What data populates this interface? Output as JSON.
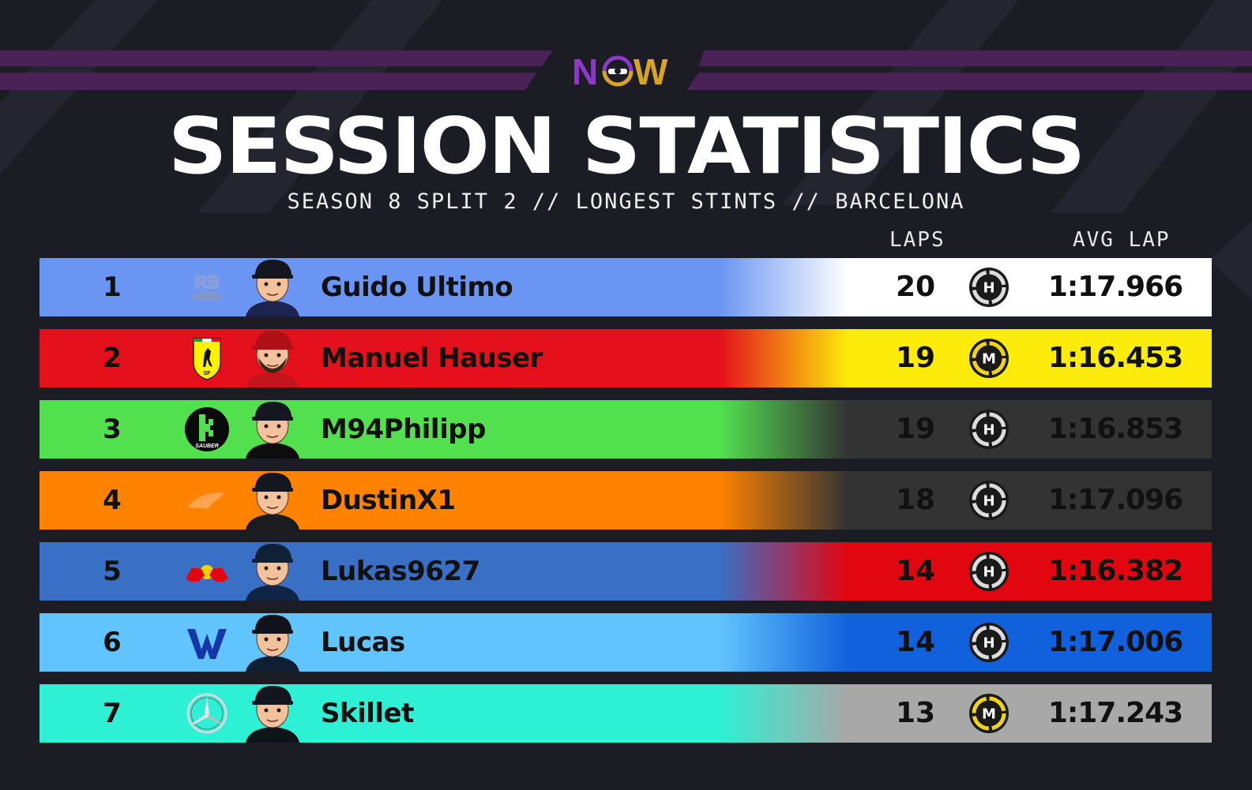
{
  "brand": {
    "logo_left": "N",
    "logo_right": "W",
    "purple": "#8d38c9",
    "gold": "#d7a425"
  },
  "header": {
    "title": "SESSION STATISTICS",
    "subtitle": "SEASON 8 SPLIT 2 // LONGEST STINTS // BARCELONA"
  },
  "columns": {
    "laps": "LAPS",
    "avg_lap": "AVG LAP"
  },
  "rows": [
    {
      "rank": "1",
      "driver": "Guido Ultimo",
      "team_icon": "racing-bulls-logo-icon",
      "laps": "20",
      "tyre": "H",
      "tyre_name": "hard",
      "avg_lap": "1:17.966",
      "team_color": "#6a95f2",
      "band_color": "#ffffff"
    },
    {
      "rank": "2",
      "driver": "Manuel Hauser",
      "team_icon": "ferrari-logo-icon",
      "laps": "19",
      "tyre": "M",
      "tyre_name": "medium",
      "avg_lap": "1:16.453",
      "team_color": "#e4101c",
      "band_color": "#fdeb0b"
    },
    {
      "rank": "3",
      "driver": "M94Philipp",
      "team_icon": "kick-sauber-logo-icon",
      "laps": "19",
      "tyre": "H",
      "tyre_name": "hard",
      "avg_lap": "1:16.853",
      "team_color": "#52e04f",
      "band_color": "#333333"
    },
    {
      "rank": "4",
      "driver": "DustinX1",
      "team_icon": "mclaren-logo-icon",
      "laps": "18",
      "tyre": "H",
      "tyre_name": "hard",
      "avg_lap": "1:17.096",
      "team_color": "#ff8200",
      "band_color": "#333333"
    },
    {
      "rank": "5",
      "driver": "Lukas9627",
      "team_icon": "red-bull-logo-icon",
      "laps": "14",
      "tyre": "H",
      "tyre_name": "hard",
      "avg_lap": "1:16.382",
      "team_color": "#3a6fc6",
      "band_color": "#e20610"
    },
    {
      "rank": "6",
      "driver": "Lucas",
      "team_icon": "williams-logo-icon",
      "laps": "14",
      "tyre": "H",
      "tyre_name": "hard",
      "avg_lap": "1:17.006",
      "team_color": "#62c4fc",
      "band_color": "#1261dc"
    },
    {
      "rank": "7",
      "driver": "Skillet",
      "team_icon": "mercedes-logo-icon",
      "laps": "13",
      "tyre": "M",
      "tyre_name": "medium",
      "avg_lap": "1:17.243",
      "team_color": "#2ef0d4",
      "band_color": "#a8a8a8"
    }
  ]
}
